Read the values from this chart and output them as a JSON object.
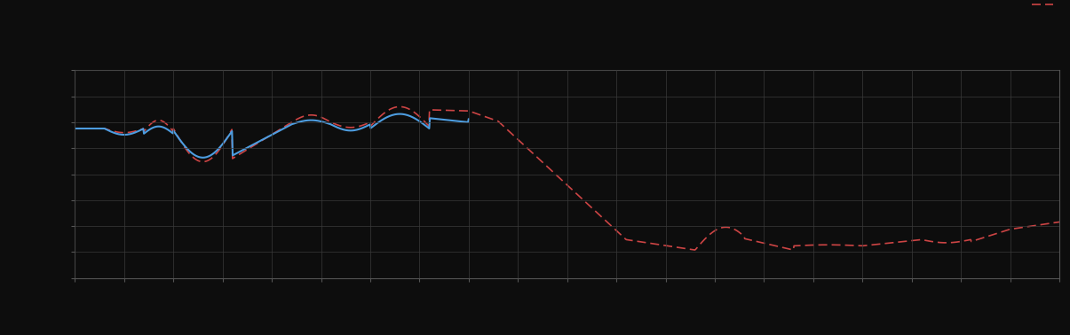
{
  "background_color": "#0d0d0d",
  "plot_bg_color": "#0d0d0d",
  "grid_color": "#3a3a3a",
  "blue_line_color": "#4d9de0",
  "red_line_color": "#cc4444",
  "figsize": [
    12.05,
    3.78
  ],
  "dpi": 100,
  "xlim": [
    0,
    100
  ],
  "ylim": [
    0,
    10
  ],
  "n_xgrid": 20,
  "n_ygrid": 8
}
